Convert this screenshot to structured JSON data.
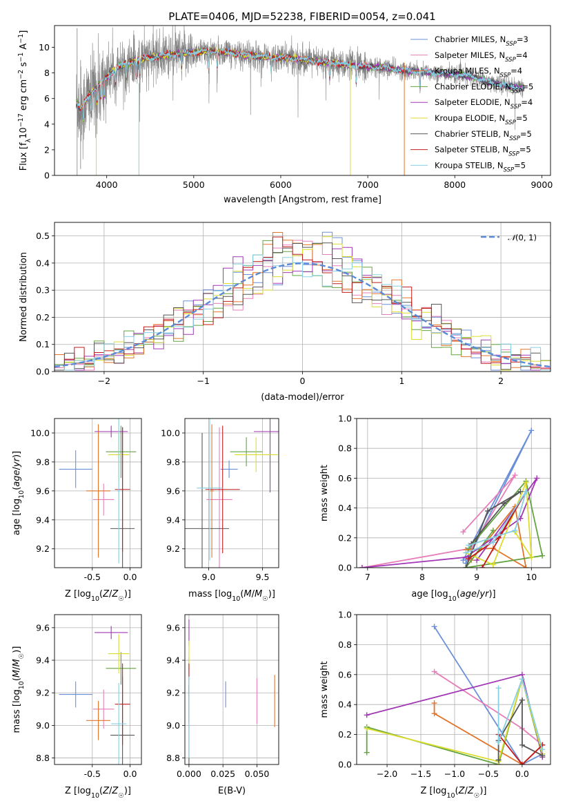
{
  "figure": {
    "title": "PLATE=0406, MJD=52238, FIBERID=0054, z=0.041"
  },
  "colors": [
    "#6a8fd8",
    "#e77db8",
    "#e2742a",
    "#62a440",
    "#a137b4",
    "#dcdc2e",
    "#555555",
    "#c21b1b",
    "#87cfe3"
  ],
  "chart_data": [
    {
      "id": "spectrum",
      "type": "line",
      "xlabel": "wavelength [Angstrom, rest frame]",
      "ylabel": "Flux [f_λ10^-17 erg cm^-2 s^-1 A^-1]",
      "xlim": [
        3400,
        9100
      ],
      "ylim": [
        0,
        11.7
      ],
      "xticks": [
        4000,
        5000,
        6000,
        7000,
        8000,
        9000
      ],
      "yticks": [
        0,
        2,
        4,
        6,
        8,
        10
      ],
      "legend_position": "upper-right",
      "legend": [
        {
          "label": "Chabrier MILES, N_SSP=3"
        },
        {
          "label": "Salpeter MILES, N_SSP=4"
        },
        {
          "label": "Kroupa MILES, N_SSP=4"
        },
        {
          "label": "Chabrier ELODIE, N_SSP=5"
        },
        {
          "label": "Salpeter ELODIE, N_SSP=4"
        },
        {
          "label": "Kroupa ELODIE, N_SSP=5"
        },
        {
          "label": "Chabrier STELIB, N_SSP=5"
        },
        {
          "label": "Salpeter STELIB, N_SSP=5"
        },
        {
          "label": "Kroupa STELIB, N_SSP=5"
        }
      ],
      "data_range": [
        3650,
        8800
      ],
      "anchors": {
        "x": [
          3650,
          3700,
          3800,
          3900,
          4000,
          4100,
          4200,
          4400,
          4600,
          4800,
          5000,
          5200,
          5400,
          5600,
          5800,
          6000,
          6200,
          6400,
          6600,
          6800,
          7000,
          7200,
          7400,
          7600,
          7800,
          8000,
          8200,
          8400,
          8600,
          8800
        ],
        "y": [
          5.7,
          5.2,
          6.3,
          7.0,
          7.6,
          8.4,
          8.7,
          9.1,
          9.3,
          9.5,
          9.6,
          9.7,
          9.6,
          9.4,
          9.3,
          9.2,
          9.1,
          8.9,
          8.8,
          8.6,
          8.5,
          8.4,
          8.2,
          8.1,
          8.0,
          7.9,
          7.7,
          7.3,
          7.0,
          6.8
        ]
      },
      "model_drops_x": [
        3880,
        4370,
        6800,
        7420
      ]
    },
    {
      "id": "residual-histogram",
      "type": "line",
      "xlabel": "(data-model)/error",
      "ylabel": "Normed distribution",
      "xlim": [
        -2.5,
        2.5
      ],
      "ylim": [
        0,
        0.55
      ],
      "xticks": [
        -2,
        -1,
        0,
        1,
        2
      ],
      "yticks": [
        0.0,
        0.1,
        0.2,
        0.3,
        0.4,
        0.5
      ],
      "grid": true,
      "legend_position": "upper-right",
      "legend": [
        {
          "label": "N(0,1)"
        }
      ],
      "bin_width": 0.1
    },
    {
      "id": "age-vs-Z",
      "type": "scatter",
      "xlabel": "Z [log10(Z/Z☉)]",
      "ylabel": "age  [log10(age/yr)]",
      "xlim": [
        -1.0,
        0.15
      ],
      "ylim": [
        9.07,
        10.1
      ],
      "xticks": [
        -0.5,
        0.0
      ],
      "yticks": [
        9.2,
        9.4,
        9.6,
        9.8,
        10.0
      ],
      "grid": true,
      "points": [
        {
          "x": -0.72,
          "y": 9.75,
          "xerr": 0.22,
          "yerr": 0.13
        },
        {
          "x": -0.35,
          "y": 9.54,
          "xerr": 0.14,
          "yerr": 0.11
        },
        {
          "x": -0.42,
          "y": 9.6,
          "xerr": 0.16,
          "yerr": 0.46
        },
        {
          "x": -0.12,
          "y": 9.87,
          "xerr": 0.2,
          "yerr": 0.18
        },
        {
          "x": -0.25,
          "y": 10.01,
          "xerr": 0.22,
          "yerr": 0.04
        },
        {
          "x": -0.15,
          "y": 9.85,
          "xerr": 0.14,
          "yerr": 0.18
        },
        {
          "x": -0.1,
          "y": 9.34,
          "xerr": 0.16,
          "yerr": 0.7
        },
        {
          "x": -0.1,
          "y": 9.61,
          "xerr": 0.1,
          "yerr": 0.43
        },
        {
          "x": -0.15,
          "y": 9.6,
          "xerr": 0.02,
          "yerr": 0.5
        }
      ]
    },
    {
      "id": "age-vs-mass",
      "type": "scatter",
      "xlabel": "mass [log10(M/M☉)]",
      "ylabel": "",
      "xlim": [
        8.78,
        9.65
      ],
      "ylim": [
        9.07,
        10.1
      ],
      "xticks": [
        9.0,
        9.5
      ],
      "yticks": [
        9.2,
        9.4,
        9.6,
        9.8,
        10.0
      ],
      "grid": true,
      "points": [
        {
          "x": 9.19,
          "y": 9.75,
          "xerr": 0.08,
          "yerr": 0.06
        },
        {
          "x": 9.1,
          "y": 9.54,
          "xerr": 0.12,
          "yerr": 0.5
        },
        {
          "x": 9.03,
          "y": 9.6,
          "xerr": 0.02,
          "yerr": 0.46
        },
        {
          "x": 9.35,
          "y": 9.87,
          "xerr": 0.15,
          "yerr": 0.1
        },
        {
          "x": 9.57,
          "y": 10.01,
          "xerr": 0.15,
          "yerr": 0.42
        },
        {
          "x": 9.44,
          "y": 9.85,
          "xerr": 0.2,
          "yerr": 0.12
        },
        {
          "x": 8.94,
          "y": 9.34,
          "xerr": 0.25,
          "yerr": 0.66
        },
        {
          "x": 9.13,
          "y": 9.61,
          "xerr": 0.16,
          "yerr": 0.44
        },
        {
          "x": 9.01,
          "y": 9.62,
          "xerr": 0.12,
          "yerr": 0.5
        }
      ]
    },
    {
      "id": "weight-vs-age",
      "type": "line",
      "xlabel": "age  [log10(age/yr)]",
      "ylabel": "mass weight",
      "xlim": [
        6.8,
        10.35
      ],
      "ylim": [
        0,
        1.0
      ],
      "xticks": [
        7,
        8,
        9,
        10
      ],
      "yticks": [
        0.0,
        0.2,
        0.4,
        0.6,
        0.8,
        1.0
      ],
      "grid": true,
      "series": [
        {
          "x": [
            8.8,
            10.0,
            8.75
          ],
          "y": [
            0.03,
            0.92,
            0.05
          ]
        },
        {
          "x": [
            6.9,
            8.9,
            9.7,
            8.75
          ],
          "y": [
            0.0,
            0.13,
            0.62,
            0.24
          ]
        },
        {
          "x": [
            8.9,
            9.7,
            9.9,
            9.3,
            8.8
          ],
          "y": [
            0.05,
            0.41,
            0.0,
            0.13,
            0.12
          ]
        },
        {
          "x": [
            8.85,
            9.9,
            10.2,
            8.8,
            9.3
          ],
          "y": [
            0.13,
            0.58,
            0.08,
            0.0,
            0.25
          ]
        },
        {
          "x": [
            6.9,
            8.8,
            9.8,
            10.1,
            9.0
          ],
          "y": [
            0.0,
            0.07,
            0.33,
            0.6,
            0.05
          ]
        },
        {
          "x": [
            8.8,
            9.3,
            9.9,
            10.0,
            9.7
          ],
          "y": [
            0.1,
            0.02,
            0.57,
            0.07,
            0.24
          ]
        },
        {
          "x": [
            8.8,
            9.2,
            9.8,
            9.5,
            8.9
          ],
          "y": [
            0.0,
            0.38,
            0.51,
            0.43,
            0.16
          ]
        },
        {
          "x": [
            8.85,
            9.4,
            9.9,
            9.1
          ],
          "y": [
            0.06,
            0.2,
            0.51,
            0.0
          ]
        },
        {
          "x": [
            8.8,
            9.3,
            9.9,
            9.7,
            8.85
          ],
          "y": [
            0.1,
            0.17,
            0.51,
            0.25,
            0.15
          ]
        }
      ]
    },
    {
      "id": "mass-vs-Z",
      "type": "scatter",
      "xlabel": "Z [log10(Z/Z☉)]",
      "ylabel": "mass [log10(M/M☉)]",
      "xlim": [
        -1.0,
        0.15
      ],
      "ylim": [
        8.76,
        9.68
      ],
      "xticks": [
        -0.5,
        0.0
      ],
      "yticks": [
        8.8,
        9.0,
        9.2,
        9.4,
        9.6
      ],
      "grid": true,
      "points": [
        {
          "x": -0.72,
          "y": 9.19,
          "xerr": 0.22,
          "yerr": 0.08
        },
        {
          "x": -0.35,
          "y": 9.1,
          "xerr": 0.14,
          "yerr": 0.12
        },
        {
          "x": -0.42,
          "y": 9.03,
          "xerr": 0.16,
          "yerr": 0.12
        },
        {
          "x": -0.12,
          "y": 9.35,
          "xerr": 0.2,
          "yerr": 0.1
        },
        {
          "x": -0.25,
          "y": 9.57,
          "xerr": 0.22,
          "yerr": 0.04
        },
        {
          "x": -0.15,
          "y": 9.44,
          "xerr": 0.14,
          "yerr": 0.12
        },
        {
          "x": -0.1,
          "y": 8.94,
          "xerr": 0.16,
          "yerr": 0.36
        },
        {
          "x": -0.1,
          "y": 9.13,
          "xerr": 0.1,
          "yerr": 0.25
        },
        {
          "x": -0.15,
          "y": 9.01,
          "xerr": 0.1,
          "yerr": 0.25
        }
      ]
    },
    {
      "id": "mass-vs-EBV",
      "type": "scatter",
      "xlabel": "E(B-V)",
      "ylabel": "",
      "xlim": [
        -0.003,
        0.066
      ],
      "ylim": [
        8.76,
        9.68
      ],
      "xticks": [
        0.0,
        0.025,
        0.05
      ],
      "xtick_labels": [
        "0.000",
        "0.025",
        "0.050"
      ],
      "yticks": [
        8.8,
        9.0,
        9.2,
        9.4,
        9.6
      ],
      "grid": true,
      "points": [
        {
          "x": 0.027,
          "y": 9.19,
          "xerr": 0,
          "yerr": 0.08
        },
        {
          "x": 0.05,
          "y": 9.15,
          "xerr": 0,
          "yerr": 0.14
        },
        {
          "x": 0.063,
          "y": 9.15,
          "xerr": 0,
          "yerr": 0.16
        },
        {
          "x": 0.0,
          "y": 9.3,
          "xerr": 0,
          "yerr": 0.12
        },
        {
          "x": 0.0,
          "y": 9.57,
          "xerr": 0,
          "yerr": 0.08
        },
        {
          "x": 0.0,
          "y": 9.42,
          "xerr": 0,
          "yerr": 0.1
        },
        {
          "x": 0.0,
          "y": 9.0,
          "xerr": 0,
          "yerr": 0.25
        },
        {
          "x": 0.0,
          "y": 9.2,
          "xerr": 0,
          "yerr": 0.18
        },
        {
          "x": 0.0,
          "y": 9.05,
          "xerr": 0,
          "yerr": 0.25
        }
      ]
    },
    {
      "id": "weight-vs-Z",
      "type": "line",
      "xlabel": "Z [log10(Z/Z☉)]",
      "ylabel": "mass weight",
      "xlim": [
        -2.45,
        0.42
      ],
      "ylim": [
        0,
        1.0
      ],
      "xticks": [
        -2.0,
        -1.5,
        -1.0,
        -0.5,
        0.0
      ],
      "yticks": [
        0.0,
        0.2,
        0.4,
        0.6,
        0.8,
        1.0
      ],
      "grid": true,
      "series": [
        {
          "x": [
            -1.3,
            0.0,
            0.3
          ],
          "y": [
            0.92,
            0.0,
            0.07
          ]
        },
        {
          "x": [
            -1.3,
            0.0,
            0.3
          ],
          "y": [
            0.62,
            0.24,
            0.13
          ]
        },
        {
          "x": [
            -1.3,
            -1.3,
            0.0,
            0.3
          ],
          "y": [
            0.41,
            0.34,
            0.0,
            0.13
          ]
        },
        {
          "x": [
            -2.3,
            -2.3,
            -0.35,
            0.0,
            0.3
          ],
          "y": [
            0.08,
            0.25,
            0.0,
            0.57,
            0.05
          ]
        },
        {
          "x": [
            -2.3,
            0.0,
            0.3
          ],
          "y": [
            0.33,
            0.6,
            0.05
          ]
        },
        {
          "x": [
            -2.3,
            -0.35,
            0.0,
            0.3
          ],
          "y": [
            0.24,
            0.02,
            0.57,
            0.07
          ]
        },
        {
          "x": [
            -0.35,
            -0.35,
            0.0,
            0.0,
            0.3
          ],
          "y": [
            0.03,
            0.16,
            0.43,
            0.13,
            0.06
          ]
        },
        {
          "x": [
            -0.35,
            0.0,
            0.3
          ],
          "y": [
            0.2,
            0.0,
            0.13
          ]
        },
        {
          "x": [
            -0.35,
            -0.35,
            0.0,
            0.3
          ],
          "y": [
            0.51,
            0.15,
            0.57,
            0.1
          ]
        }
      ]
    }
  ]
}
